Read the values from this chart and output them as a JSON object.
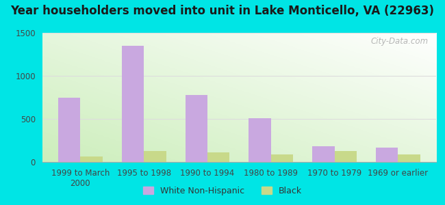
{
  "title": "Year householders moved into unit in Lake Monticello, VA (22963)",
  "categories": [
    "1999 to March\n2000",
    "1995 to 1998",
    "1990 to 1994",
    "1980 to 1989",
    "1970 to 1979",
    "1969 or earlier"
  ],
  "white_values": [
    750,
    1350,
    775,
    510,
    185,
    165
  ],
  "black_values": [
    60,
    130,
    110,
    90,
    130,
    90
  ],
  "white_color": "#c9a8e0",
  "black_color": "#c8d98a",
  "ylim": [
    0,
    1500
  ],
  "yticks": [
    0,
    500,
    1000,
    1500
  ],
  "background_outer": "#00e5e5",
  "grad_top_right": "#ffffff",
  "grad_bottom_left": "#cceebb",
  "grid_color": "#dddddd",
  "bar_width": 0.35,
  "legend_white": "White Non-Hispanic",
  "legend_black": "Black",
  "watermark": "City-Data.com",
  "title_fontsize": 12,
  "tick_fontsize": 8.5,
  "legend_fontsize": 9
}
